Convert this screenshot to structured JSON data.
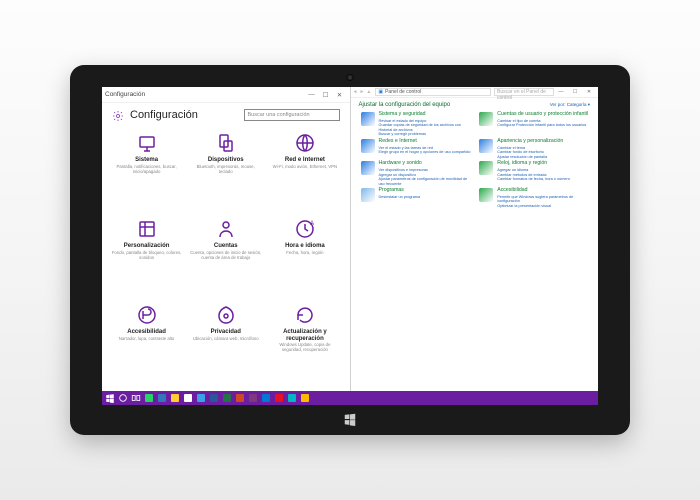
{
  "colors": {
    "accent": "#6b1fa0",
    "taskbar": "#6b1fa0",
    "cp_heading": "#0a6b2e",
    "cp_link": "#1a5fb4",
    "tablet_bezel": "#1a1a1a"
  },
  "settings": {
    "window_title": "Configuración",
    "header": "Configuración",
    "search_placeholder": "Buscar una configuración",
    "tiles": [
      {
        "title": "Sistema",
        "desc": "Pantalla, notificaciones, buscar, inicio/apagado"
      },
      {
        "title": "Dispositivos",
        "desc": "Bluetooth, impresoras, mouse, teclado"
      },
      {
        "title": "Red e Internet",
        "desc": "Wi-Fi, modo avión, Ethernet, VPN"
      },
      {
        "title": "Personalización",
        "desc": "Fondo, pantalla de bloqueo, colores, sonidos"
      },
      {
        "title": "Cuentas",
        "desc": "Cuenta, opciones de inicio de sesión, cuenta de área de trabajo"
      },
      {
        "title": "Hora e idioma",
        "desc": "Fecha, hora, región"
      },
      {
        "title": "Accesibilidad",
        "desc": "Narrador, lupa, contraste alto"
      },
      {
        "title": "Privacidad",
        "desc": "Ubicación, cámara web, micrófono"
      },
      {
        "title": "Actualización y recuperación",
        "desc": "Windows Update, copia de seguridad, recuperación"
      }
    ]
  },
  "control_panel": {
    "window_title": "Panel de control",
    "address": "Panel de control",
    "search_placeholder": "Buscar en el Panel de control",
    "heading": "Ajustar la configuración del equipo",
    "view_label": "Ver por: Categoría ▾",
    "items": [
      {
        "title": "Sistema y seguridad",
        "links": "Revisar el estado del equipo\nGuardar copias de seguridad de los archivos con Historial de archivos\nBuscar y corregir problemas",
        "icon_color": "#2a7de1"
      },
      {
        "title": "Cuentas de usuario y protección infantil",
        "links": "Cambiar el tipo de cuenta\nConfigurar Protección infantil para todos los usuarios",
        "icon_color": "#2aa84a"
      },
      {
        "title": "Redes e Internet",
        "links": "Ver el estado y las tareas de red\nElegir grupo en el hogar y opciones de uso compartido",
        "icon_color": "#2a7de1"
      },
      {
        "title": "Apariencia y personalización",
        "links": "Cambiar el tema\nCambiar fondo de escritorio\nAjustar resolución de pantalla",
        "icon_color": "#2a7de1"
      },
      {
        "title": "Hardware y sonido",
        "links": "Ver dispositivos e impresoras\nAgregar un dispositivo\nAjustar parámetros de configuración de movilidad de uso frecuente",
        "icon_color": "#2a7de1"
      },
      {
        "title": "Reloj, idioma y región",
        "links": "Agregar un idioma\nCambiar métodos de entrada\nCambiar formatos de fecha, hora o número",
        "icon_color": "#2aa84a"
      },
      {
        "title": "Programas",
        "links": "Desinstalar un programa",
        "icon_color": "#7fb8e8"
      },
      {
        "title": "Accesibilidad",
        "links": "Permitir que Windows sugiera parámetros de configuración\nOptimizar la presentación visual",
        "icon_color": "#2aa84a"
      }
    ]
  },
  "taskbar": {
    "icons": [
      {
        "name": "start",
        "color": "#ffffff"
      },
      {
        "name": "cortana",
        "color": "#ffffff"
      },
      {
        "name": "taskview",
        "color": "#ffffff"
      },
      {
        "name": "whatsapp",
        "color": "#25d366"
      },
      {
        "name": "edge",
        "color": "#3277bc"
      },
      {
        "name": "folder",
        "color": "#ffcc33"
      },
      {
        "name": "store",
        "color": "#ffffff"
      },
      {
        "name": "photos",
        "color": "#3ba0e6"
      },
      {
        "name": "word",
        "color": "#2b579a"
      },
      {
        "name": "excel",
        "color": "#217346"
      },
      {
        "name": "powerpoint",
        "color": "#d24726"
      },
      {
        "name": "onenote",
        "color": "#80397b"
      },
      {
        "name": "mail",
        "color": "#0078d4"
      },
      {
        "name": "app1",
        "color": "#e81123"
      },
      {
        "name": "app2",
        "color": "#00b7c3"
      },
      {
        "name": "app3",
        "color": "#ffb900"
      }
    ]
  }
}
